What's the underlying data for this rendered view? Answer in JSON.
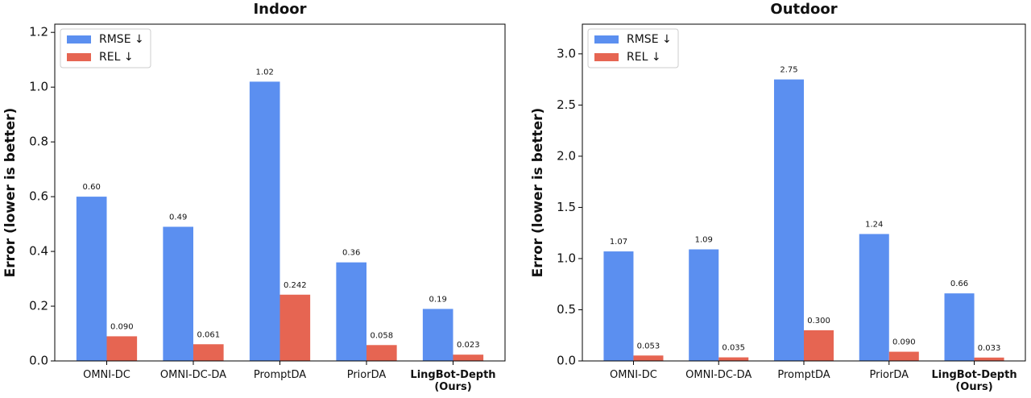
{
  "chart_data": [
    {
      "type": "bar",
      "title": "Indoor",
      "y_label": "Error (lower is better)",
      "categories": [
        "OMNI-DC",
        "OMNI-DC-DA",
        "PromptDA",
        "PriorDA",
        "LingBot-Depth (Ours)"
      ],
      "series": [
        {
          "name": "RMSE ↓",
          "color": "#5b8ff0",
          "values": [
            0.6,
            0.49,
            1.02,
            0.36,
            0.19
          ],
          "value_labels": [
            "0.60",
            "0.49",
            "1.02",
            "0.36",
            "0.19"
          ]
        },
        {
          "name": "REL ↓",
          "color": "#e66552",
          "values": [
            0.09,
            0.061,
            0.242,
            0.058,
            0.023
          ],
          "value_labels": [
            "0.090",
            "0.061",
            "0.242",
            "0.058",
            "0.023"
          ]
        }
      ],
      "ylim": [
        0,
        1.23
      ],
      "yticks": [
        {
          "value": 0,
          "label": "0.0"
        },
        0.2,
        0.4,
        0.6,
        0.8,
        {
          "value": 1,
          "label": "1.0"
        },
        1.2
      ],
      "legend": "upper left"
    },
    {
      "type": "bar",
      "title": "Outdoor",
      "y_label": "Error (lower is better)",
      "categories": [
        "OMNI-DC",
        "OMNI-DC-DA",
        "PromptDA",
        "PriorDA",
        "LingBot-Depth (Ours)"
      ],
      "series": [
        {
          "name": "RMSE ↓",
          "color": "#5b8ff0",
          "values": [
            1.07,
            1.09,
            2.75,
            1.24,
            0.66
          ],
          "value_labels": [
            "1.07",
            "1.09",
            "2.75",
            "1.24",
            "0.66"
          ]
        },
        {
          "name": "REL ↓",
          "color": "#e66552",
          "values": [
            0.053,
            0.035,
            0.3,
            0.09,
            0.033
          ],
          "value_labels": [
            "0.053",
            "0.035",
            "0.300",
            "0.090",
            "0.033"
          ]
        }
      ],
      "ylim": [
        0,
        3.29
      ],
      "yticks": [
        {
          "value": 0,
          "label": "0.0"
        },
        0.5,
        {
          "value": 1,
          "label": "1.0"
        },
        1.5,
        {
          "value": 2,
          "label": "2.0"
        },
        2.5,
        {
          "value": 3,
          "label": "3.0"
        }
      ],
      "legend": "upper left"
    }
  ]
}
